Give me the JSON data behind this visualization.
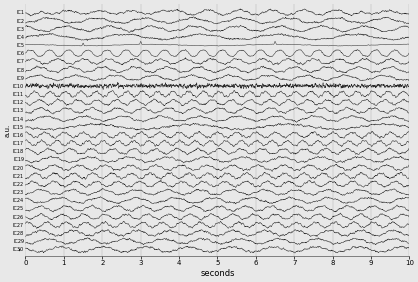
{
  "n_channels": 30,
  "duration": 10,
  "fs": 256,
  "channel_prefix": "IC",
  "xlabel": "seconds",
  "ylabel": "a.u.",
  "xticks": [
    0,
    1,
    2,
    3,
    4,
    5,
    6,
    7,
    8,
    9,
    10
  ],
  "background_color": "#e8e8e8",
  "line_color": "#2a2a2a",
  "line_width": 0.35,
  "fig_width": 4.18,
  "fig_height": 2.82,
  "dpi": 100,
  "channel_amplitudes": [
    2.5,
    1.5,
    1.2,
    0.8,
    3.0,
    4.0,
    1.0,
    0.9,
    0.8,
    2.5,
    1.8,
    1.5,
    1.2,
    1.0,
    0.5,
    0.7,
    1.5,
    1.2,
    0.8,
    1.0,
    1.3,
    1.0,
    0.8,
    0.9,
    1.1,
    1.2,
    1.0,
    0.9,
    0.8,
    0.7
  ],
  "channel_freqs": [
    1.2,
    0.8,
    0.9,
    0.5,
    0.3,
    2.0,
    1.5,
    1.2,
    1.0,
    3.0,
    2.5,
    2.0,
    1.5,
    1.0,
    0.4,
    2.0,
    2.5,
    1.8,
    1.0,
    1.5,
    2.0,
    1.8,
    1.2,
    1.0,
    1.5,
    1.8,
    2.0,
    1.2,
    1.0,
    0.9
  ]
}
